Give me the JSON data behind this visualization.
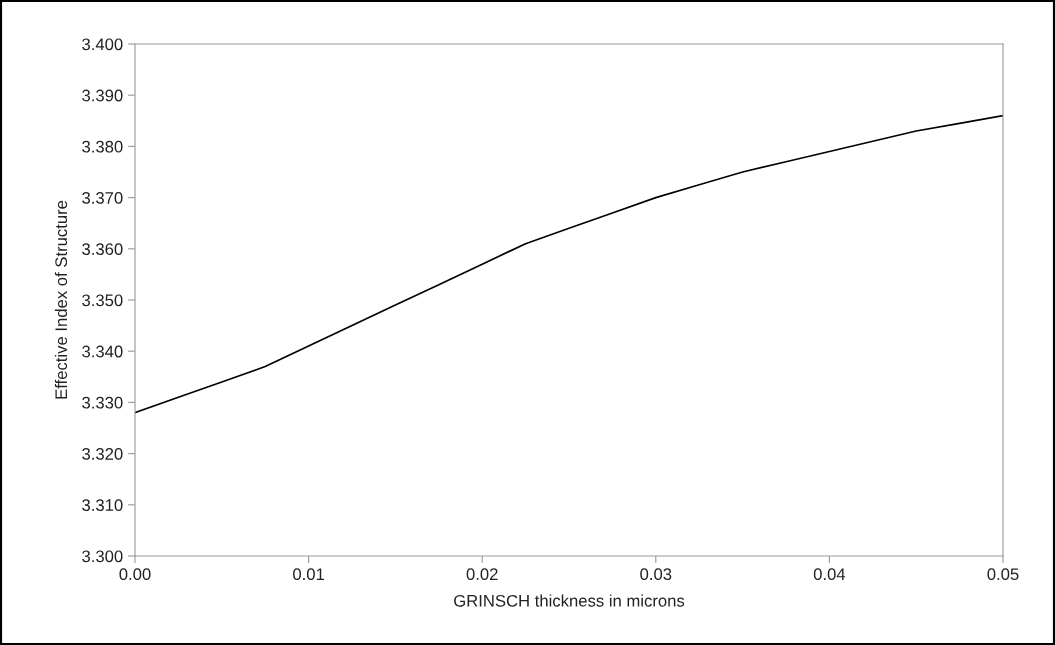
{
  "chart_data": {
    "type": "line",
    "xlabel": "GRINSCH thickness in microns",
    "ylabel": "Effective Index of Structure",
    "x": [
      0,
      0.0025,
      0.005,
      0.0075,
      0.01,
      0.0125,
      0.015,
      0.0175,
      0.02,
      0.0225,
      0.025,
      0.0275,
      0.03,
      0.0325,
      0.035,
      0.0375,
      0.04,
      0.0425,
      0.045,
      0.0475,
      0.05
    ],
    "series": [
      {
        "color": "#000000",
        "values": [
          3.328,
          3.331,
          3.334,
          3.337,
          3.341,
          3.345,
          3.349,
          3.353,
          3.357,
          3.361,
          3.364,
          3.367,
          3.37,
          3.3725,
          3.375,
          3.377,
          3.379,
          3.381,
          3.383,
          3.3845,
          3.386
        ]
      }
    ],
    "xlim": [
      0,
      0.05
    ],
    "xticks": [
      {
        "value": 0,
        "label": "0.00"
      },
      0.01,
      0.02,
      0.03,
      0.04,
      0.05
    ],
    "ylim": [
      3.3,
      3.4
    ],
    "yticks": [
      {
        "value": 3.3,
        "label": "3.300"
      },
      {
        "value": 3.31,
        "label": "3.310"
      },
      {
        "value": 3.32,
        "label": "3.320"
      },
      {
        "value": 3.33,
        "label": "3.330"
      },
      {
        "value": 3.34,
        "label": "3.340"
      },
      {
        "value": 3.35,
        "label": "3.350"
      },
      {
        "value": 3.36,
        "label": "3.360"
      },
      {
        "value": 3.37,
        "label": "3.370"
      },
      {
        "value": 3.38,
        "label": "3.380"
      },
      {
        "value": 3.39,
        "label": "3.390"
      },
      {
        "value": 3.4,
        "label": "3.400"
      }
    ],
    "grid": false,
    "legend": false,
    "marker": "none",
    "line_style": "solid"
  }
}
